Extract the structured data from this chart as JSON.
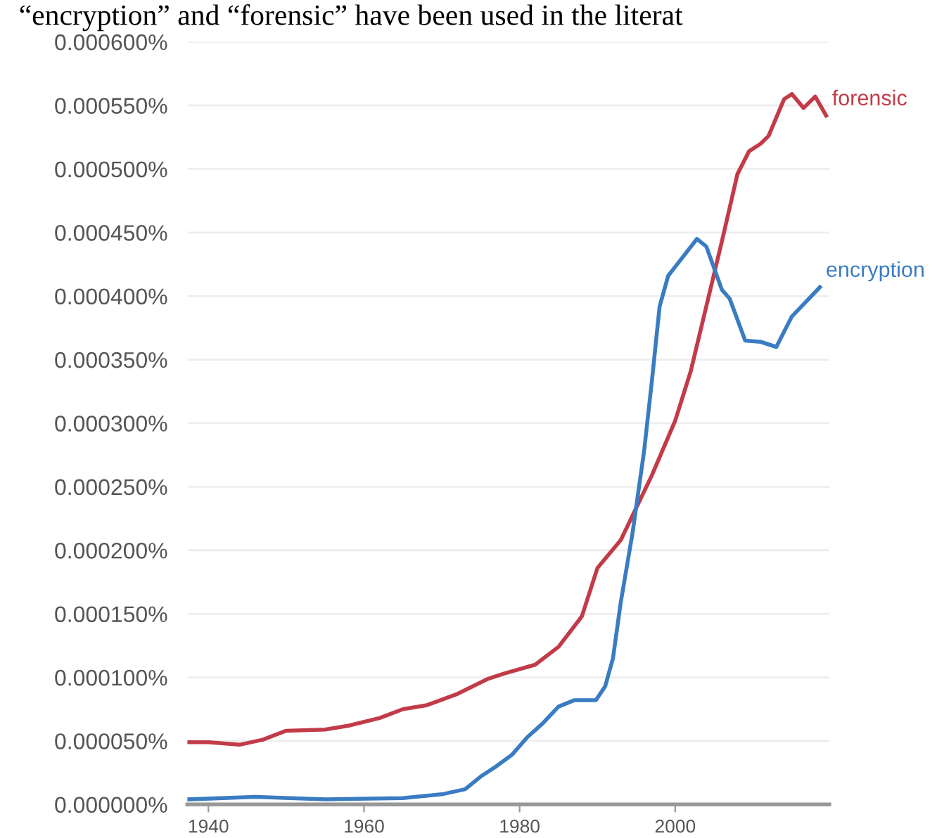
{
  "chart_data": {
    "type": "line",
    "title": "“encryption” and “forensic” have been used in the literat",
    "series": [
      {
        "name": "forensic",
        "color": "#c23b48",
        "x": [
          1937.3,
          1940,
          1944,
          1947,
          1950,
          1955,
          1958,
          1962,
          1965,
          1968,
          1972,
          1976,
          1978,
          1982,
          1985,
          1988,
          1990,
          1993,
          1997,
          2000,
          2002,
          2004,
          2006,
          2008,
          2009.5,
          2011,
          2012,
          2014,
          2015,
          2016.5,
          2018,
          2019.4
        ],
        "values": [
          4.9e-05,
          4.9e-05,
          4.7e-05,
          5.1e-05,
          5.8e-05,
          5.9e-05,
          6.2e-05,
          6.8e-05,
          7.5e-05,
          7.8e-05,
          8.7e-05,
          9.9e-05,
          0.000103,
          0.00011,
          0.000124,
          0.000148,
          0.000186,
          0.000208,
          0.000259,
          0.000302,
          0.000341,
          0.000392,
          0.000443,
          0.000496,
          0.000514,
          0.00052,
          0.000526,
          0.000555,
          0.000559,
          0.000548,
          0.000557,
          0.000542
        ]
      },
      {
        "name": "encryption",
        "color": "#3a7cc2",
        "x": [
          1937.3,
          1946,
          1955,
          1965,
          1970,
          1973,
          1975,
          1977,
          1979,
          1981,
          1983,
          1985,
          1987,
          1989.8,
          1991,
          1992,
          1993,
          1994.5,
          1996,
          1997,
          1998,
          1999.1,
          2000.5,
          2002.8,
          2004,
          2006,
          2007,
          2009,
          2011,
          2013,
          2015,
          2018.6
        ],
        "values": [
          4e-06,
          6e-06,
          4e-06,
          5e-06,
          8e-06,
          1.2e-05,
          2.2e-05,
          3e-05,
          3.9e-05,
          5.3e-05,
          6.4e-05,
          7.7e-05,
          8.2e-05,
          8.2e-05,
          9.3e-05,
          0.000115,
          0.000159,
          0.000213,
          0.000278,
          0.000333,
          0.000392,
          0.000416,
          0.000427,
          0.000445,
          0.000439,
          0.000405,
          0.000398,
          0.000365,
          0.000364,
          0.00036,
          0.000384,
          0.000407
        ]
      }
    ],
    "xlim": [
      1937.3,
      2019.8
    ],
    "xticks": [
      1940,
      1960,
      1980,
      2000
    ],
    "ylim": [
      0,
      0.0006
    ],
    "yticks": [
      {
        "value": 0,
        "label": "0.000000%"
      },
      {
        "value": 5e-05,
        "label": "0.000050%"
      },
      {
        "value": 0.0001,
        "label": "0.000100%"
      },
      {
        "value": 0.00015,
        "label": "0.000150%"
      },
      {
        "value": 0.0002,
        "label": "0.000200%"
      },
      {
        "value": 0.00025,
        "label": "0.000250%"
      },
      {
        "value": 0.0003,
        "label": "0.000300%"
      },
      {
        "value": 0.00035,
        "label": "0.000350%"
      },
      {
        "value": 0.0004,
        "label": "0.000400%"
      },
      {
        "value": 0.00045,
        "label": "0.000450%"
      },
      {
        "value": 0.0005,
        "label": "0.000500%"
      },
      {
        "value": 0.00055,
        "label": "0.000550%"
      },
      {
        "value": 0.0006,
        "label": "0.000600%"
      }
    ],
    "grid": "y",
    "legend": false,
    "marker": "none",
    "line_style": "solid"
  }
}
